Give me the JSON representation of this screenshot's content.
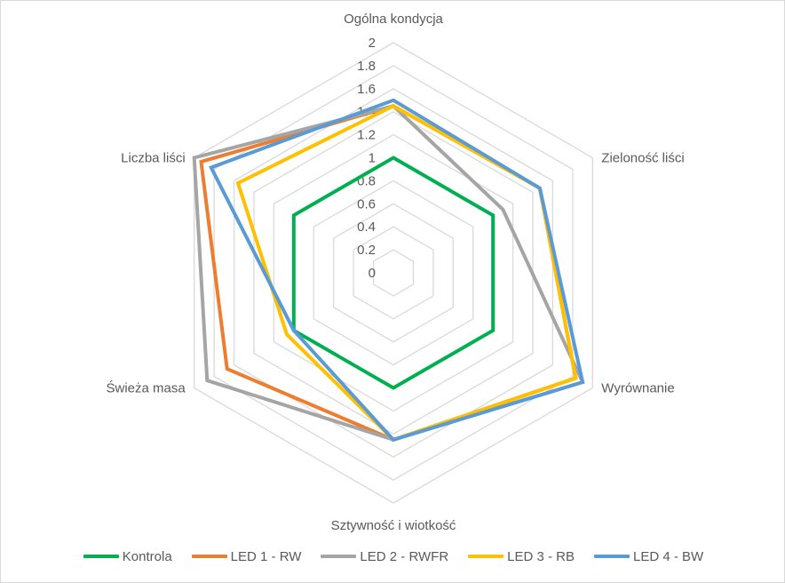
{
  "chart_data": {
    "type": "radar",
    "title": "",
    "axes": [
      "Ogólna kondycja",
      "Zieloność liści",
      "Wyrównanie",
      "Sztywność i wiotkość",
      "Świeża masa",
      "Liczba liści"
    ],
    "ticks": [
      "0",
      "0.2",
      "0.4",
      "0.6",
      "0.8",
      "1",
      "1.2",
      "1.4",
      "1.6",
      "1.8",
      "2"
    ],
    "range": [
      0,
      2
    ],
    "series": [
      {
        "name": "Kontrola",
        "color": "#00b050",
        "values": [
          1.0,
          1.0,
          1.0,
          1.0,
          1.0,
          1.0
        ]
      },
      {
        "name": "LED 1 - RW",
        "color": "#ed7d31",
        "values": [
          1.45,
          1.47,
          1.83,
          1.45,
          1.67,
          1.93
        ]
      },
      {
        "name": "LED 2 - RWFR",
        "color": "#a5a5a5",
        "values": [
          1.45,
          1.1,
          1.9,
          1.45,
          1.87,
          2.0
        ]
      },
      {
        "name": "LED 3 - RB",
        "color": "#ffc000",
        "values": [
          1.45,
          1.47,
          1.83,
          1.45,
          1.07,
          1.56
        ]
      },
      {
        "name": "LED 4 - BW",
        "color": "#5b9bd5",
        "values": [
          1.5,
          1.47,
          1.9,
          1.45,
          1.0,
          1.83
        ]
      }
    ],
    "grid": true,
    "legend": "bottom"
  }
}
